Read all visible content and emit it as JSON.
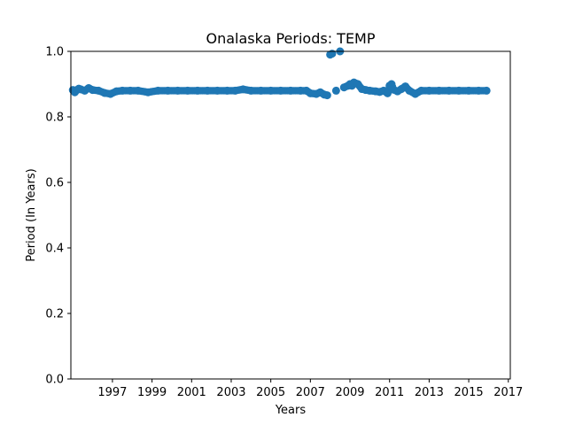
{
  "chart_data": {
    "type": "scatter",
    "title": "Onalaska Periods: TEMP",
    "xlabel": "Years",
    "ylabel": "Period (In Years)",
    "xlim": [
      1994.9,
      2017.1
    ],
    "ylim": [
      0.0,
      1.0
    ],
    "x_ticks": [
      1997,
      1999,
      2001,
      2003,
      2005,
      2007,
      2009,
      2011,
      2013,
      2015,
      2017
    ],
    "x_tick_labels": [
      "1997",
      "1999",
      "2001",
      "2003",
      "2005",
      "2007",
      "2009",
      "2011",
      "2013",
      "2015",
      "2017"
    ],
    "y_ticks": [
      0.0,
      0.2,
      0.4,
      0.6,
      0.8,
      1.0
    ],
    "y_tick_labels": [
      "0.0",
      "0.2",
      "0.4",
      "0.6",
      "0.8",
      "1.0"
    ],
    "grid": false,
    "marker_color": "#1f77b4",
    "series": [
      {
        "x": [
          1995.0,
          1995.1,
          1995.2,
          1995.3,
          1995.4,
          1995.6,
          1995.8,
          1996.0,
          1996.3,
          1996.6,
          1996.9,
          1997.2,
          1997.5,
          1997.9,
          1998.3,
          1998.8,
          1999.3,
          1999.8,
          2000.3,
          2000.8,
          2001.3,
          2001.8,
          2002.3,
          2002.8,
          2003.2,
          2003.6,
          2004.0,
          2004.5,
          2005.0,
          2005.5,
          2006.0,
          2006.5,
          2006.8,
          2007.0,
          2007.3,
          2007.5,
          2007.7,
          2007.85,
          2008.0,
          2008.1,
          2008.3,
          2008.5,
          2008.7,
          2008.9,
          2009.0,
          2009.1,
          2009.2,
          2009.4,
          2009.6,
          2009.8,
          2010.0,
          2010.3,
          2010.5,
          2010.7,
          2010.9,
          2011.0,
          2011.1,
          2011.2,
          2011.4,
          2011.6,
          2011.8,
          2012.0,
          2012.3,
          2012.6,
          2013.0,
          2013.5,
          2014.0,
          2014.5,
          2015.0,
          2015.5,
          2015.9
        ],
        "y": [
          0.882,
          0.875,
          0.882,
          0.886,
          0.884,
          0.88,
          0.888,
          0.882,
          0.88,
          0.873,
          0.87,
          0.878,
          0.88,
          0.88,
          0.88,
          0.875,
          0.88,
          0.88,
          0.88,
          0.88,
          0.88,
          0.88,
          0.88,
          0.88,
          0.88,
          0.884,
          0.88,
          0.88,
          0.88,
          0.88,
          0.88,
          0.88,
          0.88,
          0.872,
          0.87,
          0.875,
          0.868,
          0.866,
          0.99,
          0.993,
          0.88,
          1.0,
          0.89,
          0.895,
          0.9,
          0.895,
          0.905,
          0.9,
          0.885,
          0.882,
          0.88,
          0.878,
          0.876,
          0.88,
          0.872,
          0.895,
          0.9,
          0.883,
          0.878,
          0.885,
          0.893,
          0.88,
          0.87,
          0.88,
          0.88,
          0.88,
          0.88,
          0.88,
          0.88,
          0.88,
          0.88
        ]
      }
    ]
  }
}
